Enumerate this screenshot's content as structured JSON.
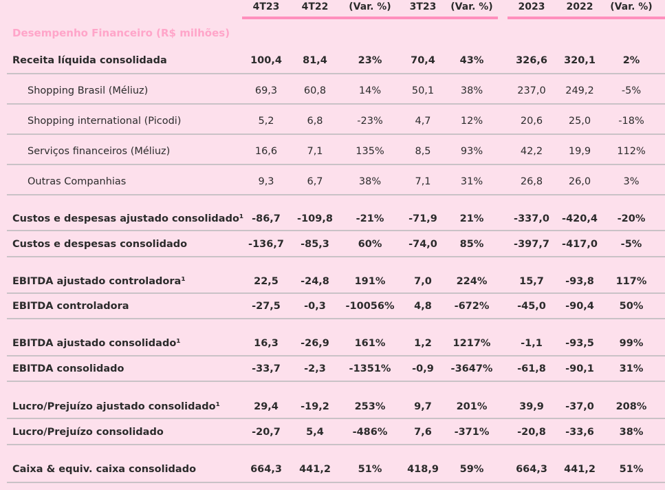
{
  "columns": [
    "4T23",
    "4T22",
    "(Var. %)",
    "3T23",
    "(Var. %)",
    "2023",
    "2022",
    "(Var. %)"
  ],
  "section_title": "Desempenho Financeiro (R$ milhões)",
  "rows": [
    {
      "label": "Receita líquida consolidada",
      "values": [
        "100,4",
        "81,4",
        "23%",
        "70,4",
        "43%",
        "326,6",
        "320,1",
        "2%"
      ]
    },
    {
      "label": "Shopping Brasil (Méliuz)",
      "values": [
        "69,3",
        "60,8",
        "14%",
        "50,1",
        "38%",
        "237,0",
        "249,2",
        "-5%"
      ]
    },
    {
      "label": "Shopping international (Picodi)",
      "values": [
        "5,2",
        "6,8",
        "-23%",
        "4,7",
        "12%",
        "20,6",
        "25,0",
        "-18%"
      ]
    },
    {
      "label": "Serviços financeiros (Méliuz)",
      "values": [
        "16,6",
        "7,1",
        "135%",
        "8,5",
        "93%",
        "42,2",
        "19,9",
        "112%"
      ]
    },
    {
      "label": "Outras Companhias",
      "values": [
        "9,3",
        "6,7",
        "38%",
        "7,1",
        "31%",
        "26,8",
        "26,0",
        "3%"
      ]
    },
    {
      "label": "Custos e despesas ajustado consolidado¹",
      "values": [
        "-86,7",
        "-109,8",
        "-21%",
        "-71,9",
        "21%",
        "-337,0",
        "-420,4",
        "-20%"
      ]
    },
    {
      "label": "Custos e despesas consolidado",
      "values": [
        "-136,7",
        "-85,3",
        "60%",
        "-74,0",
        "85%",
        "-397,7",
        "-417,0",
        "-5%"
      ]
    },
    {
      "label": "EBITDA ajustado controladora¹",
      "values": [
        "22,5",
        "-24,8",
        "191%",
        "7,0",
        "224%",
        "15,7",
        "-93,8",
        "117%"
      ]
    },
    {
      "label": "EBITDA controladora",
      "values": [
        "-27,5",
        "-0,3",
        "-10056%",
        "4,8",
        "-672%",
        "-45,0",
        "-90,4",
        "50%"
      ]
    },
    {
      "label": "EBITDA ajustado consolidado¹",
      "values": [
        "16,3",
        "-26,9",
        "161%",
        "1,2",
        "1217%",
        "-1,1",
        "-93,5",
        "99%"
      ]
    },
    {
      "label": "EBITDA consolidado",
      "values": [
        "-33,7",
        "-2,3",
        "-1351%",
        "-0,9",
        "-3647%",
        "-61,8",
        "-90,1",
        "31%"
      ]
    },
    {
      "label": "Lucro/Prejuízo ajustado consolidado¹",
      "values": [
        "29,4",
        "-19,2",
        "253%",
        "9,7",
        "201%",
        "39,9",
        "-37,0",
        "208%"
      ]
    },
    {
      "label": "Lucro/Prejuízo consolidado",
      "values": [
        "-20,7",
        "5,4",
        "-486%",
        "7,6",
        "-371%",
        "-20,8",
        "-33,6",
        "38%"
      ]
    },
    {
      "label": "Caixa & equiv. caixa consolidado",
      "values": [
        "664,3",
        "441,2",
        "51%",
        "418,9",
        "59%",
        "664,3",
        "441,2",
        "51%"
      ]
    }
  ]
}
